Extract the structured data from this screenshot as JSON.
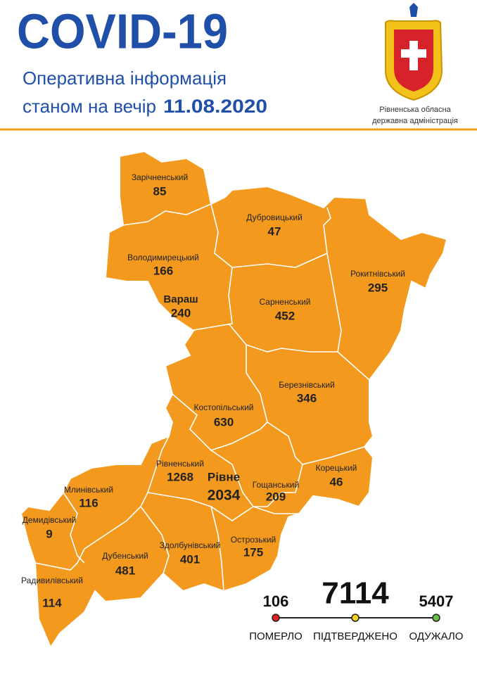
{
  "header": {
    "title": "COVID-19",
    "subtitle": "Оперативна інформація",
    "date_prefix": "станом на вечір",
    "date": "11.08.2020",
    "org_line1": "Рівненська обласна",
    "org_line2": "державна адміністрація"
  },
  "districts": [
    {
      "name": "Зарічненський",
      "cases": 85
    },
    {
      "name": "Дубровицький",
      "cases": 47
    },
    {
      "name": "Володимирецький",
      "cases": 166
    },
    {
      "name": "Рокитнівський",
      "cases": 295
    },
    {
      "name": "Вараш",
      "cases": 240
    },
    {
      "name": "Сарненський",
      "cases": 452
    },
    {
      "name": "Березнівський",
      "cases": 346
    },
    {
      "name": "Костопільський",
      "cases": 630
    },
    {
      "name": "Рівненський",
      "cases": 1268
    },
    {
      "name": "Рівне",
      "cases": 2034
    },
    {
      "name": "Корецький",
      "cases": 46
    },
    {
      "name": "Гощанський",
      "cases": 209
    },
    {
      "name": "Млинівський",
      "cases": 116
    },
    {
      "name": "Демидівський",
      "cases": 9
    },
    {
      "name": "Здолбунівський",
      "cases": 401
    },
    {
      "name": "Острозький",
      "cases": 175
    },
    {
      "name": "Дубенський",
      "cases": 481
    },
    {
      "name": "Радивилівський",
      "cases": 114
    }
  ],
  "summary": [
    {
      "label": "ПОМЕРЛО",
      "value": 106
    },
    {
      "label": "ПІДТВЕРДЖЕНО",
      "value": 7114
    },
    {
      "label": "ОДУЖАЛО",
      "value": 5407
    }
  ]
}
